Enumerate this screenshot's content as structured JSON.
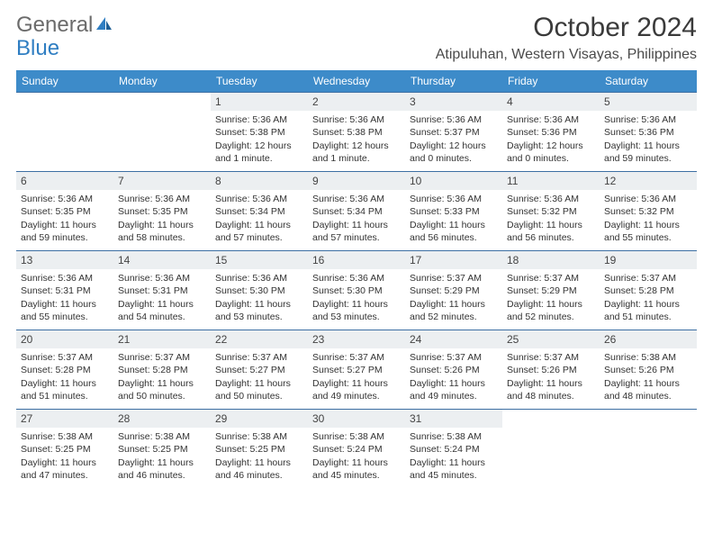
{
  "brand": {
    "part1": "General",
    "part2": "Blue"
  },
  "title": "October 2024",
  "location": "Atipuluhan, Western Visayas, Philippines",
  "colors": {
    "header_bg": "#3d8bc9",
    "header_text": "#ffffff",
    "daynum_bg": "#eceff1",
    "border": "#3d6fa3",
    "body_text": "#333333",
    "title_text": "#3a3a3a",
    "brand_gray": "#6b6b6b",
    "brand_blue": "#2f7ec2"
  },
  "weekdays": [
    "Sunday",
    "Monday",
    "Tuesday",
    "Wednesday",
    "Thursday",
    "Friday",
    "Saturday"
  ],
  "weeks": [
    [
      {
        "n": "",
        "sunrise": "",
        "sunset": "",
        "daylight": ""
      },
      {
        "n": "",
        "sunrise": "",
        "sunset": "",
        "daylight": ""
      },
      {
        "n": "1",
        "sunrise": "Sunrise: 5:36 AM",
        "sunset": "Sunset: 5:38 PM",
        "daylight": "Daylight: 12 hours and 1 minute."
      },
      {
        "n": "2",
        "sunrise": "Sunrise: 5:36 AM",
        "sunset": "Sunset: 5:38 PM",
        "daylight": "Daylight: 12 hours and 1 minute."
      },
      {
        "n": "3",
        "sunrise": "Sunrise: 5:36 AM",
        "sunset": "Sunset: 5:37 PM",
        "daylight": "Daylight: 12 hours and 0 minutes."
      },
      {
        "n": "4",
        "sunrise": "Sunrise: 5:36 AM",
        "sunset": "Sunset: 5:36 PM",
        "daylight": "Daylight: 12 hours and 0 minutes."
      },
      {
        "n": "5",
        "sunrise": "Sunrise: 5:36 AM",
        "sunset": "Sunset: 5:36 PM",
        "daylight": "Daylight: 11 hours and 59 minutes."
      }
    ],
    [
      {
        "n": "6",
        "sunrise": "Sunrise: 5:36 AM",
        "sunset": "Sunset: 5:35 PM",
        "daylight": "Daylight: 11 hours and 59 minutes."
      },
      {
        "n": "7",
        "sunrise": "Sunrise: 5:36 AM",
        "sunset": "Sunset: 5:35 PM",
        "daylight": "Daylight: 11 hours and 58 minutes."
      },
      {
        "n": "8",
        "sunrise": "Sunrise: 5:36 AM",
        "sunset": "Sunset: 5:34 PM",
        "daylight": "Daylight: 11 hours and 57 minutes."
      },
      {
        "n": "9",
        "sunrise": "Sunrise: 5:36 AM",
        "sunset": "Sunset: 5:34 PM",
        "daylight": "Daylight: 11 hours and 57 minutes."
      },
      {
        "n": "10",
        "sunrise": "Sunrise: 5:36 AM",
        "sunset": "Sunset: 5:33 PM",
        "daylight": "Daylight: 11 hours and 56 minutes."
      },
      {
        "n": "11",
        "sunrise": "Sunrise: 5:36 AM",
        "sunset": "Sunset: 5:32 PM",
        "daylight": "Daylight: 11 hours and 56 minutes."
      },
      {
        "n": "12",
        "sunrise": "Sunrise: 5:36 AM",
        "sunset": "Sunset: 5:32 PM",
        "daylight": "Daylight: 11 hours and 55 minutes."
      }
    ],
    [
      {
        "n": "13",
        "sunrise": "Sunrise: 5:36 AM",
        "sunset": "Sunset: 5:31 PM",
        "daylight": "Daylight: 11 hours and 55 minutes."
      },
      {
        "n": "14",
        "sunrise": "Sunrise: 5:36 AM",
        "sunset": "Sunset: 5:31 PM",
        "daylight": "Daylight: 11 hours and 54 minutes."
      },
      {
        "n": "15",
        "sunrise": "Sunrise: 5:36 AM",
        "sunset": "Sunset: 5:30 PM",
        "daylight": "Daylight: 11 hours and 53 minutes."
      },
      {
        "n": "16",
        "sunrise": "Sunrise: 5:36 AM",
        "sunset": "Sunset: 5:30 PM",
        "daylight": "Daylight: 11 hours and 53 minutes."
      },
      {
        "n": "17",
        "sunrise": "Sunrise: 5:37 AM",
        "sunset": "Sunset: 5:29 PM",
        "daylight": "Daylight: 11 hours and 52 minutes."
      },
      {
        "n": "18",
        "sunrise": "Sunrise: 5:37 AM",
        "sunset": "Sunset: 5:29 PM",
        "daylight": "Daylight: 11 hours and 52 minutes."
      },
      {
        "n": "19",
        "sunrise": "Sunrise: 5:37 AM",
        "sunset": "Sunset: 5:28 PM",
        "daylight": "Daylight: 11 hours and 51 minutes."
      }
    ],
    [
      {
        "n": "20",
        "sunrise": "Sunrise: 5:37 AM",
        "sunset": "Sunset: 5:28 PM",
        "daylight": "Daylight: 11 hours and 51 minutes."
      },
      {
        "n": "21",
        "sunrise": "Sunrise: 5:37 AM",
        "sunset": "Sunset: 5:28 PM",
        "daylight": "Daylight: 11 hours and 50 minutes."
      },
      {
        "n": "22",
        "sunrise": "Sunrise: 5:37 AM",
        "sunset": "Sunset: 5:27 PM",
        "daylight": "Daylight: 11 hours and 50 minutes."
      },
      {
        "n": "23",
        "sunrise": "Sunrise: 5:37 AM",
        "sunset": "Sunset: 5:27 PM",
        "daylight": "Daylight: 11 hours and 49 minutes."
      },
      {
        "n": "24",
        "sunrise": "Sunrise: 5:37 AM",
        "sunset": "Sunset: 5:26 PM",
        "daylight": "Daylight: 11 hours and 49 minutes."
      },
      {
        "n": "25",
        "sunrise": "Sunrise: 5:37 AM",
        "sunset": "Sunset: 5:26 PM",
        "daylight": "Daylight: 11 hours and 48 minutes."
      },
      {
        "n": "26",
        "sunrise": "Sunrise: 5:38 AM",
        "sunset": "Sunset: 5:26 PM",
        "daylight": "Daylight: 11 hours and 48 minutes."
      }
    ],
    [
      {
        "n": "27",
        "sunrise": "Sunrise: 5:38 AM",
        "sunset": "Sunset: 5:25 PM",
        "daylight": "Daylight: 11 hours and 47 minutes."
      },
      {
        "n": "28",
        "sunrise": "Sunrise: 5:38 AM",
        "sunset": "Sunset: 5:25 PM",
        "daylight": "Daylight: 11 hours and 46 minutes."
      },
      {
        "n": "29",
        "sunrise": "Sunrise: 5:38 AM",
        "sunset": "Sunset: 5:25 PM",
        "daylight": "Daylight: 11 hours and 46 minutes."
      },
      {
        "n": "30",
        "sunrise": "Sunrise: 5:38 AM",
        "sunset": "Sunset: 5:24 PM",
        "daylight": "Daylight: 11 hours and 45 minutes."
      },
      {
        "n": "31",
        "sunrise": "Sunrise: 5:38 AM",
        "sunset": "Sunset: 5:24 PM",
        "daylight": "Daylight: 11 hours and 45 minutes."
      },
      {
        "n": "",
        "sunrise": "",
        "sunset": "",
        "daylight": ""
      },
      {
        "n": "",
        "sunrise": "",
        "sunset": "",
        "daylight": ""
      }
    ]
  ]
}
